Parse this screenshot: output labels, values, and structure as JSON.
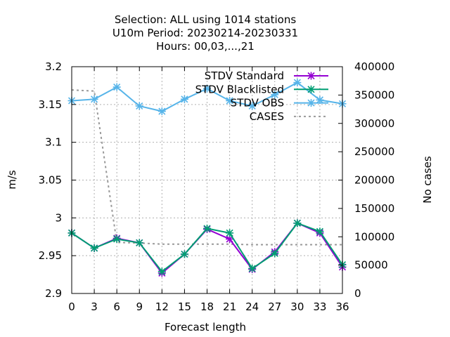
{
  "chart_data": {
    "type": "line",
    "title": [
      "Selection: ALL using  1014 stations",
      "U10m   Period: 20230214-20230331",
      "Hours:  00,03,...,21"
    ],
    "xlabel": "Forecast length",
    "ylabel": "m/s",
    "y2label": "No cases",
    "x": [
      0,
      3,
      6,
      9,
      12,
      15,
      18,
      21,
      24,
      27,
      30,
      33,
      36
    ],
    "xlim": [
      0,
      36
    ],
    "ylim": [
      2.9,
      3.2
    ],
    "y2lim": [
      0,
      400000
    ],
    "xticks": [
      "0",
      "3",
      "6",
      "9",
      "12",
      "15",
      "18",
      "21",
      "24",
      "27",
      "30",
      "33",
      "36"
    ],
    "yticks": [
      "2.9",
      "2.95",
      "3",
      "3.05",
      "3.1",
      "3.15",
      "3.2"
    ],
    "y2ticks": [
      "0",
      "50000",
      "100000",
      "150000",
      "200000",
      "250000",
      "300000",
      "350000",
      "400000"
    ],
    "grid": true,
    "legend_position": "top-right",
    "series": [
      {
        "name": "STDV Standard",
        "axis": "y",
        "color": "#9400d3",
        "marker": "x-star",
        "values": [
          2.98,
          2.96,
          2.973,
          2.967,
          2.927,
          2.952,
          2.985,
          2.972,
          2.932,
          2.955,
          2.993,
          2.98,
          2.935
        ]
      },
      {
        "name": "STDV Blacklisted",
        "axis": "y",
        "color": "#009e73",
        "marker": "x-star",
        "values": [
          2.98,
          2.96,
          2.972,
          2.967,
          2.929,
          2.952,
          2.986,
          2.98,
          2.933,
          2.953,
          2.993,
          2.982,
          2.938
        ]
      },
      {
        "name": "STDV OBS",
        "axis": "y",
        "color": "#56b4e9",
        "marker": "x-star",
        "values": [
          3.155,
          3.157,
          3.173,
          3.148,
          3.141,
          3.157,
          3.171,
          3.155,
          3.148,
          3.163,
          3.179,
          3.156,
          3.151
        ]
      },
      {
        "name": "CASES",
        "axis": "y2",
        "color": "#999999",
        "dashed": true,
        "values": [
          359000,
          357000,
          90000,
          89000,
          87000,
          87000,
          87000,
          87000,
          86000,
          86000,
          86000,
          86000,
          86000
        ]
      }
    ]
  }
}
